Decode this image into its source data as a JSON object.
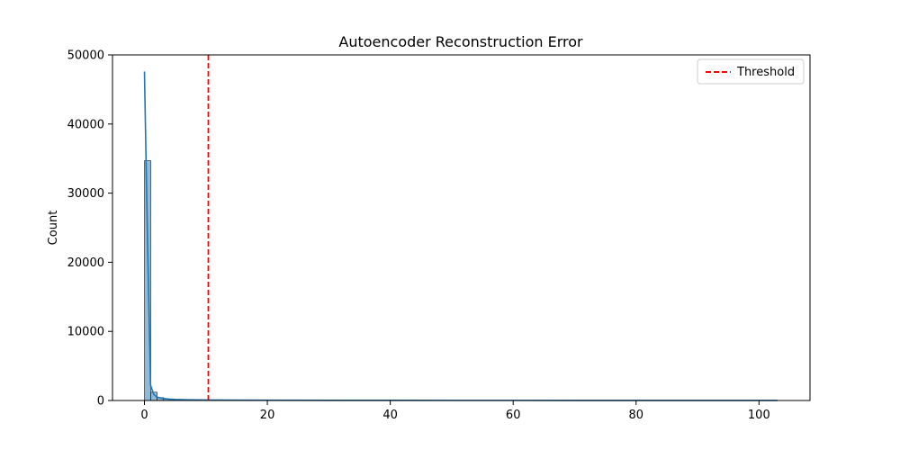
{
  "chart_data": {
    "type": "bar",
    "title": "Autoencoder Reconstruction Error",
    "xlabel": "",
    "ylabel": "Count",
    "xlim": [
      -5.2,
      108.3
    ],
    "ylim": [
      0,
      50000
    ],
    "x_ticks": [
      0,
      20,
      40,
      60,
      80,
      100
    ],
    "y_ticks": [
      0,
      10000,
      20000,
      30000,
      40000,
      50000
    ],
    "grid": false,
    "legend_position": "top-right",
    "histogram": {
      "bin_edges": [
        0,
        1.03,
        2.06,
        3.09,
        4.12,
        5.15,
        6.18,
        7.21,
        8.24,
        9.27,
        10.3,
        20,
        40,
        60,
        80,
        103
      ],
      "counts": [
        34700,
        1200,
        420,
        230,
        160,
        120,
        95,
        80,
        70,
        60,
        40,
        25,
        15,
        10,
        5
      ],
      "color": "#1f77b4"
    },
    "kde_line": {
      "x": [
        0,
        0.5,
        1,
        1.5,
        2,
        3,
        4,
        5,
        7,
        10,
        20,
        40,
        60,
        80,
        103
      ],
      "y": [
        47600,
        23000,
        2200,
        900,
        500,
        300,
        200,
        150,
        100,
        70,
        40,
        20,
        15,
        10,
        5
      ],
      "color": "#1f77b4"
    },
    "threshold": {
      "name": "Threshold",
      "x": 10.4,
      "color": "#ff0000"
    }
  }
}
